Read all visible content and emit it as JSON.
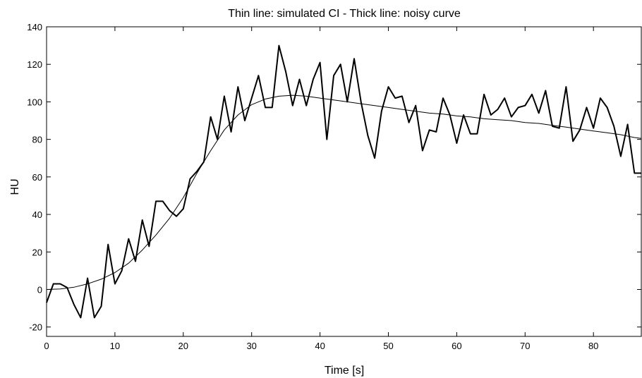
{
  "chart_data": {
    "type": "line",
    "title": "Thin line: simulated CI - Thick line: noisy curve",
    "xlabel": "Time [s]",
    "ylabel": "HU",
    "xlim": [
      0,
      87
    ],
    "ylim": [
      -25,
      140
    ],
    "xticks": [
      0,
      10,
      20,
      30,
      40,
      50,
      60,
      70,
      80
    ],
    "yticks": [
      -20,
      0,
      20,
      40,
      60,
      80,
      100,
      120,
      140
    ],
    "grid": false,
    "series": [
      {
        "style": "thin",
        "x": [
          0,
          2,
          4,
          6,
          8,
          10,
          12,
          14,
          16,
          18,
          20,
          22,
          24,
          26,
          28,
          30,
          32,
          34,
          36,
          38,
          40,
          42,
          44,
          46,
          48,
          50,
          52,
          54,
          56,
          58,
          60,
          62,
          64,
          66,
          68,
          70,
          72,
          74,
          76,
          78,
          80,
          82,
          84,
          86,
          87
        ],
        "y": [
          0,
          0.3,
          1.2,
          3,
          5.5,
          9,
          14,
          21,
          29,
          38,
          49,
          62,
          74,
          85,
          93,
          98.5,
          101.5,
          103,
          103.5,
          103,
          102,
          101,
          100,
          99,
          98,
          97,
          96,
          95,
          94,
          93.5,
          92.5,
          92,
          91,
          90.5,
          90,
          89,
          88.5,
          87.5,
          86.5,
          85.5,
          84.5,
          83.5,
          82.5,
          81,
          80.5
        ]
      },
      {
        "style": "thick",
        "x": [
          0,
          1,
          2,
          3,
          4,
          5,
          6,
          7,
          8,
          9,
          10,
          11,
          12,
          13,
          14,
          15,
          16,
          17,
          18,
          19,
          20,
          21,
          22,
          23,
          24,
          25,
          26,
          27,
          28,
          29,
          30,
          31,
          32,
          33,
          34,
          35,
          36,
          37,
          38,
          39,
          40,
          41,
          42,
          43,
          44,
          45,
          46,
          47,
          48,
          49,
          50,
          51,
          52,
          53,
          54,
          55,
          56,
          57,
          58,
          59,
          60,
          61,
          62,
          63,
          64,
          65,
          66,
          67,
          68,
          69,
          70,
          71,
          72,
          73,
          74,
          75,
          76,
          77,
          78,
          79,
          80,
          81,
          82,
          83,
          84,
          85,
          86,
          87
        ],
        "y": [
          -7,
          3,
          3,
          1,
          -8,
          -15,
          6,
          -15,
          -9,
          24,
          3,
          10,
          27,
          15,
          37,
          23,
          47,
          47,
          42,
          39,
          43,
          59,
          63,
          68,
          92,
          80,
          103,
          84,
          108,
          90,
          102,
          114,
          97,
          97,
          130,
          116,
          98,
          112,
          98,
          112,
          121,
          80,
          114,
          120,
          100,
          123,
          100,
          82,
          70,
          95,
          108,
          102,
          103,
          89,
          98,
          74,
          85,
          84,
          102,
          93,
          78,
          93,
          83,
          83,
          104,
          93,
          96,
          102,
          92,
          97,
          98,
          104,
          94,
          106,
          87,
          86,
          108,
          79,
          85,
          97,
          86,
          102,
          97,
          87,
          71,
          88,
          62,
          62
        ]
      }
    ]
  }
}
